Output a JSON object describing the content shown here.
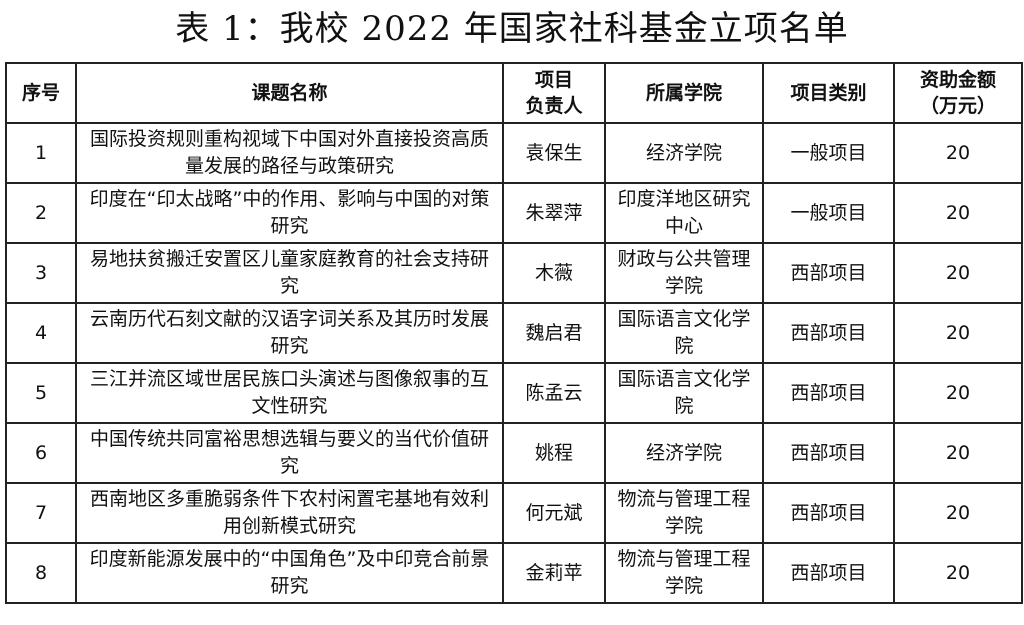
{
  "title": "表 1：我校 2022 年国家社科基金立项名单",
  "headers": [
    "序号",
    "课题名称",
    "项目负责人",
    "所属学院",
    "项目类别",
    "资助金额（万元）"
  ],
  "header_lines": [
    [
      "序号"
    ],
    [
      "课题名称"
    ],
    [
      "项目",
      "负责人"
    ],
    [
      "所属学院"
    ],
    [
      "项目类别"
    ],
    [
      "资助金额",
      "（万元）"
    ]
  ],
  "rows": [
    {
      "no": "1",
      "topic": "国际投资规则重构视域下中国对外直接投资高质量发展的路径与政策研究",
      "leader": "袁保生",
      "college": "经济学院",
      "category": "一般项目",
      "amount": "20"
    },
    {
      "no": "2",
      "topic": "印度在“印太战略”中的作用、影响与中国的对策研究",
      "leader": "朱翠萍",
      "college": "印度洋地区研究中心",
      "category": "一般项目",
      "amount": "20"
    },
    {
      "no": "3",
      "topic": "易地扶贫搬迁安置区儿童家庭教育的社会支持研究",
      "leader": "木薇",
      "college": "财政与公共管理学院",
      "category": "西部项目",
      "amount": "20"
    },
    {
      "no": "4",
      "topic": "云南历代石刻文献的汉语字词关系及其历时发展研究",
      "leader": "魏启君",
      "college": "国际语言文化学院",
      "category": "西部项目",
      "amount": "20"
    },
    {
      "no": "5",
      "topic": "三江并流区域世居民族口头演述与图像叙事的互文性研究",
      "leader": "陈孟云",
      "college": "国际语言文化学院",
      "category": "西部项目",
      "amount": "20"
    },
    {
      "no": "6",
      "topic": "中国传统共同富裕思想选辑与要义的当代价值研究",
      "leader": "姚程",
      "college": "经济学院",
      "category": "西部项目",
      "amount": "20"
    },
    {
      "no": "7",
      "topic": "西南地区多重脆弱条件下农村闲置宅基地有效利用创新模式研究",
      "leader": "何元斌",
      "college": "物流与管理工程学院",
      "category": "西部项目",
      "amount": "20"
    },
    {
      "no": "8",
      "topic": "印度新能源发展中的“中国角色”及中印竞合前景研究",
      "leader": "金莉苹",
      "college": "物流与管理工程学院",
      "category": "西部项目",
      "amount": "20"
    }
  ]
}
